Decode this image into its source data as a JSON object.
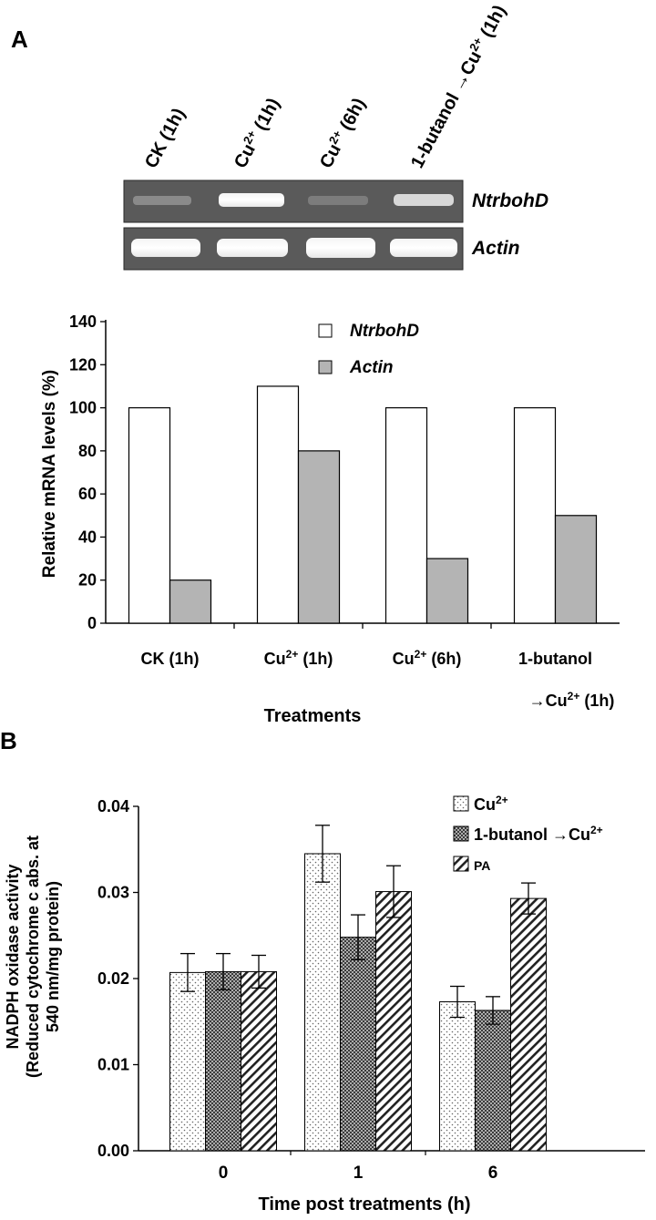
{
  "panel_a": {
    "label": "A",
    "gel": {
      "lanes": [
        {
          "pre": "CK (1h)",
          "sup": "",
          "post": ""
        },
        {
          "pre": "Cu",
          "sup": "2+",
          "post": " (1h)"
        },
        {
          "pre": "Cu",
          "sup": "2+",
          "post": " (6h)"
        },
        {
          "pre": "1-butanol →Cu",
          "sup": "2+",
          "post": " (1h)"
        }
      ],
      "rows": [
        {
          "label": "NtrbohD"
        },
        {
          "label": "Actin"
        }
      ]
    }
  },
  "panel_b": {
    "label": "B"
  },
  "chart_data": [
    {
      "type": "bar",
      "categories": [
        {
          "pre": "CK (1h)",
          "sup": "",
          "post": "",
          "line2": ""
        },
        {
          "pre": "Cu",
          "sup": "2+",
          "post": " (1h)",
          "line2": ""
        },
        {
          "pre": "Cu",
          "sup": "2+",
          "post": " (6h)",
          "line2": ""
        },
        {
          "pre": "1-butanol",
          "sup": "",
          "post": "",
          "line2": "→Cu2+ (1h)"
        }
      ],
      "series": [
        {
          "name": "NtrbohD",
          "values": [
            100,
            110,
            100,
            100
          ],
          "fill": "#ffffff"
        },
        {
          "name": "Actin",
          "values": [
            20,
            80,
            30,
            50
          ],
          "fill": "#b4b4b4"
        }
      ],
      "xlabel": "Treatments",
      "ylabel": "Relative mRNA  levels (%)",
      "ylim": [
        0,
        140
      ],
      "yticks": [
        "0",
        "20",
        "40",
        "60",
        "80",
        "100",
        "120",
        "140"
      ],
      "grid": false,
      "legend": "top-center"
    },
    {
      "type": "bar",
      "categories": [
        "0",
        "1",
        "6"
      ],
      "series": [
        {
          "name": "Cu2+",
          "legend_pre": "Cu",
          "legend_sup": "2+",
          "legend_post": "",
          "values": [
            0.0207,
            0.0345,
            0.0173
          ],
          "errors": [
            0.0022,
            0.0033,
            0.0018
          ],
          "pattern": "dots"
        },
        {
          "name": "1-butanol →Cu2+",
          "legend_pre": "1-butanol  →Cu",
          "legend_sup": "2+",
          "legend_post": "",
          "values": [
            0.0208,
            0.0248,
            0.0163
          ],
          "errors": [
            0.0021,
            0.0026,
            0.0016
          ],
          "pattern": "dense"
        },
        {
          "name": "PA",
          "legend_pre": "PA",
          "legend_sup": "",
          "legend_post": "",
          "values": [
            0.0208,
            0.0301,
            0.0293
          ],
          "errors": [
            0.0019,
            0.003,
            0.0018
          ],
          "pattern": "hatch"
        }
      ],
      "xlabel": "Time post treatments (h)",
      "ylabel_lines": [
        "NADPH oxidase activity",
        "(Reduced cytochrome c abs. at",
        "540 nm/mg protein)"
      ],
      "ylim": [
        0,
        0.04
      ],
      "yticks": [
        "0.00",
        "0.01",
        "0.02",
        "0.03",
        "0.04"
      ],
      "grid": false,
      "legend": "top-right"
    }
  ]
}
